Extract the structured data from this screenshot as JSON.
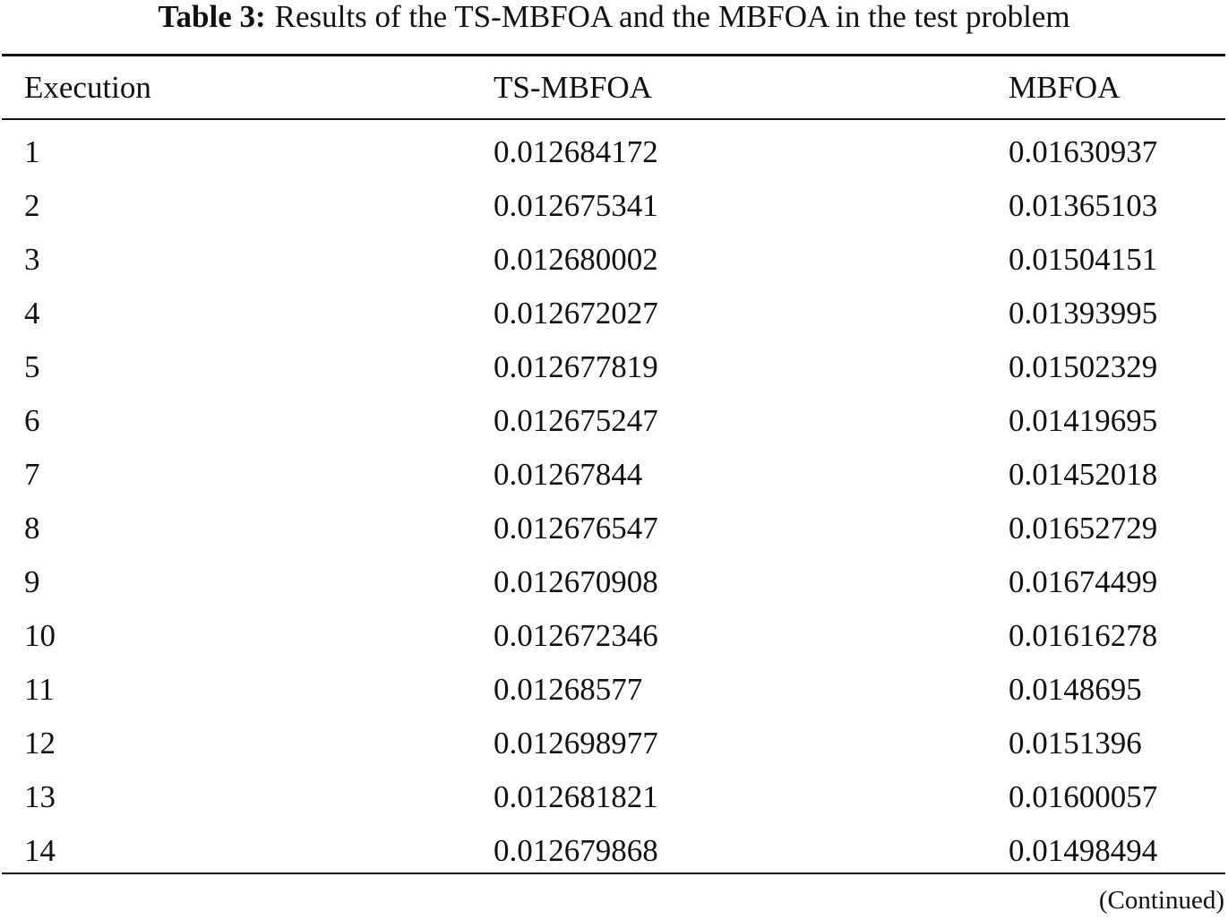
{
  "table": {
    "caption_label": "Table 3:",
    "caption_text": "Results of the TS-MBFOA and the MBFOA in the test problem",
    "header": [
      "Execution",
      "TS-MBFOA",
      "MBFOA"
    ],
    "rows": [
      [
        "1",
        "0.012684172",
        "0.01630937"
      ],
      [
        "2",
        "0.012675341",
        "0.01365103"
      ],
      [
        "3",
        "0.012680002",
        "0.01504151"
      ],
      [
        "4",
        "0.012672027",
        "0.01393995"
      ],
      [
        "5",
        "0.012677819",
        "0.01502329"
      ],
      [
        "6",
        "0.012675247",
        "0.01419695"
      ],
      [
        "7",
        "0.01267844",
        "0.01452018"
      ],
      [
        "8",
        "0.012676547",
        "0.01652729"
      ],
      [
        "9",
        "0.012670908",
        "0.01674499"
      ],
      [
        "10",
        "0.012672346",
        "0.01616278"
      ],
      [
        "11",
        "0.01268577",
        "0.0148695"
      ],
      [
        "12",
        "0.012698977",
        "0.0151396"
      ],
      [
        "13",
        "0.012681821",
        "0.01600057"
      ],
      [
        "14",
        "0.012679868",
        "0.01498494"
      ]
    ],
    "footnote": "(Continued)"
  }
}
